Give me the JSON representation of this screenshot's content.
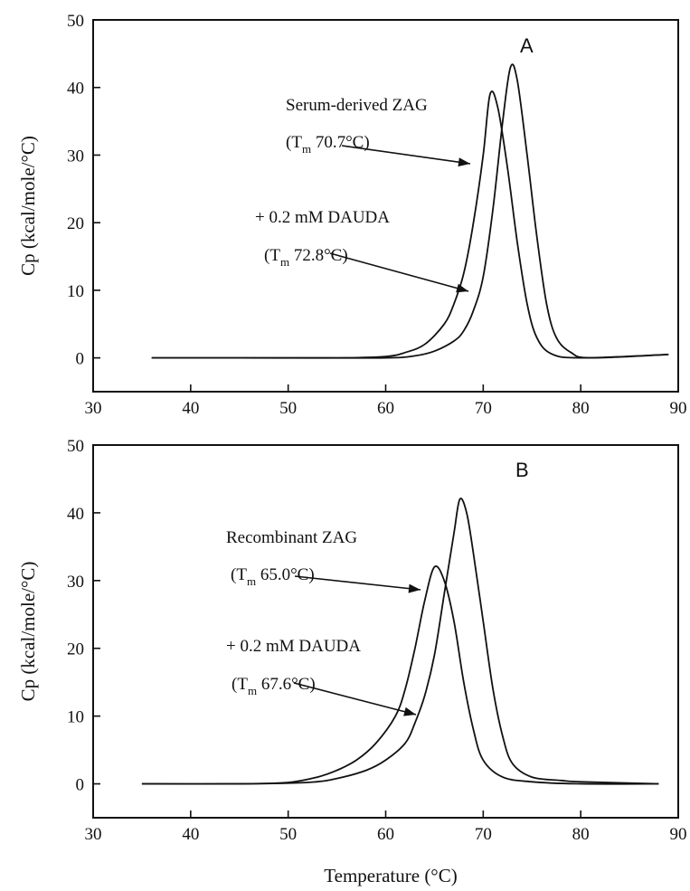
{
  "figure": {
    "xlabel": "Temperature (°C)"
  },
  "chart_data": [
    {
      "type": "line",
      "panel_label": "A",
      "xlabel": "",
      "ylabel": "Cp (kcal/mole/°C)",
      "xlim": [
        30,
        90
      ],
      "ylim": [
        -5,
        50
      ],
      "xticks": [
        30,
        40,
        50,
        60,
        70,
        80,
        90
      ],
      "yticks": [
        0,
        10,
        20,
        30,
        40,
        50
      ],
      "legend": "none",
      "series": [
        {
          "label_line1": "Serum-derived ZAG",
          "label_line2": "(Tm 70.7°C)",
          "tm": 70.7,
          "points": [
            [
              36,
              0
            ],
            [
              45,
              0
            ],
            [
              55,
              0
            ],
            [
              60,
              0.2
            ],
            [
              62,
              0.8
            ],
            [
              64,
              2
            ],
            [
              66,
              5
            ],
            [
              67,
              8
            ],
            [
              68,
              12.5
            ],
            [
              69,
              20
            ],
            [
              70,
              30
            ],
            [
              70.7,
              39
            ],
            [
              71.5,
              37
            ],
            [
              72.5,
              28
            ],
            [
              73.5,
              17
            ],
            [
              74.5,
              8
            ],
            [
              75.5,
              3
            ],
            [
              77,
              0.6
            ],
            [
              80,
              0
            ],
            [
              89,
              0.5
            ]
          ]
        },
        {
          "label_line1": "+ 0.2 mM DAUDA",
          "label_line2": "(Tm 72.8°C)",
          "tm": 72.8,
          "points": [
            [
              36,
              0
            ],
            [
              50,
              0
            ],
            [
              60,
              0
            ],
            [
              63,
              0.3
            ],
            [
              65,
              1
            ],
            [
              67,
              2.5
            ],
            [
              68,
              4
            ],
            [
              69,
              7
            ],
            [
              70,
              12
            ],
            [
              71,
              22
            ],
            [
              72,
              35
            ],
            [
              72.8,
              43
            ],
            [
              73.5,
              41
            ],
            [
              74.5,
              30
            ],
            [
              75.5,
              18
            ],
            [
              76.5,
              8
            ],
            [
              77.5,
              3
            ],
            [
              79,
              0.8
            ],
            [
              81,
              0
            ],
            [
              89,
              0.5
            ]
          ]
        }
      ]
    },
    {
      "type": "line",
      "panel_label": "B",
      "xlabel": "Temperature (°C)",
      "ylabel": "Cp (kcal/mole/°C)",
      "xlim": [
        30,
        90
      ],
      "ylim": [
        -5,
        50
      ],
      "xticks": [
        30,
        40,
        50,
        60,
        70,
        80,
        90
      ],
      "yticks": [
        0,
        10,
        20,
        30,
        40,
        50
      ],
      "legend": "none",
      "series": [
        {
          "label_line1": "Recombinant ZAG",
          "label_line2": "(Tm 65.0°C)",
          "tm": 65.0,
          "points": [
            [
              35,
              0
            ],
            [
              45,
              0
            ],
            [
              50,
              0.2
            ],
            [
              53,
              1
            ],
            [
              55,
              2
            ],
            [
              57,
              3.5
            ],
            [
              59,
              6
            ],
            [
              61,
              10
            ],
            [
              62,
              14
            ],
            [
              63,
              20
            ],
            [
              64,
              27
            ],
            [
              65,
              32
            ],
            [
              66,
              30
            ],
            [
              67,
              24
            ],
            [
              68,
              15
            ],
            [
              69,
              8
            ],
            [
              70,
              3.5
            ],
            [
              72,
              1
            ],
            [
              75,
              0.3
            ],
            [
              80,
              0
            ],
            [
              88,
              0
            ]
          ]
        },
        {
          "label_line1": "+ 0.2 mM DAUDA",
          "label_line2": "(Tm 67.6°C)",
          "tm": 67.6,
          "points": [
            [
              35,
              0
            ],
            [
              45,
              0
            ],
            [
              52,
              0.2
            ],
            [
              55,
              0.8
            ],
            [
              58,
              2
            ],
            [
              60,
              3.5
            ],
            [
              62,
              6
            ],
            [
              63,
              9
            ],
            [
              64,
              13
            ],
            [
              65,
              19
            ],
            [
              66,
              28
            ],
            [
              67,
              37
            ],
            [
              67.6,
              42
            ],
            [
              68.3,
              40
            ],
            [
              69,
              34
            ],
            [
              70,
              24
            ],
            [
              71,
              14
            ],
            [
              72,
              7
            ],
            [
              73,
              3
            ],
            [
              75,
              1
            ],
            [
              78,
              0.5
            ],
            [
              80,
              0.3
            ],
            [
              88,
              0
            ]
          ]
        }
      ]
    }
  ]
}
